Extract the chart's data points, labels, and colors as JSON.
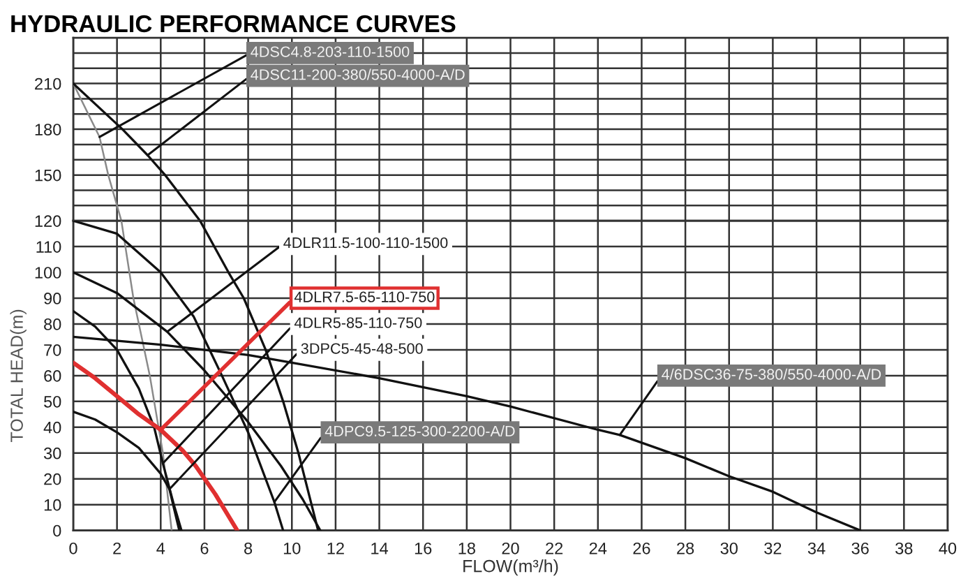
{
  "chart_data": [
    {
      "type": "line",
      "title": "HYDRAULIC PERFORMANCE CURVES",
      "tick_labels": "y",
      "series": [
        {
          "color": "#8a8a8a",
          "x": [
            0,
            1.2,
            1.6,
            2.2
          ],
          "values": [
            210,
            175,
            150,
            120
          ]
        },
        {
          "color": "#111111",
          "x": [
            0,
            2.25,
            3.4,
            4.2,
            5.8
          ],
          "values": [
            210,
            180,
            163,
            150,
            120
          ]
        }
      ],
      "annotations": [
        {
          "text": "4DSC4.8-203-110-1500",
          "x": 1.2,
          "y": 175
        },
        {
          "text": "4DSC11-200-380/550-4000-A/D",
          "x": 3.4,
          "y": 163
        }
      ],
      "xlim": [
        0,
        40
      ],
      "xticks": [
        {
          "value": 0,
          "label": null
        },
        {
          "value": 2,
          "label": null
        },
        {
          "value": 4,
          "label": null
        },
        {
          "value": 6,
          "label": null
        },
        {
          "value": 8,
          "label": null
        },
        {
          "value": 10,
          "label": null
        },
        {
          "value": 12,
          "label": null
        },
        {
          "value": 14,
          "label": null
        },
        {
          "value": 16,
          "label": null
        },
        {
          "value": 18,
          "label": null
        },
        {
          "value": 20,
          "label": null
        },
        {
          "value": 22,
          "label": null
        },
        {
          "value": 24,
          "label": null
        },
        {
          "value": 26,
          "label": null
        },
        {
          "value": 28,
          "label": null
        },
        {
          "value": 30,
          "label": null
        },
        {
          "value": 32,
          "label": null
        },
        {
          "value": 34,
          "label": null
        },
        {
          "value": 36,
          "label": null
        },
        {
          "value": 38,
          "label": null
        },
        {
          "value": 40,
          "label": null
        }
      ],
      "ylim": [
        120,
        240
      ],
      "yticks": [
        {
          "value": 130,
          "label": null
        },
        {
          "value": 140,
          "label": null
        },
        150,
        {
          "value": 160,
          "label": null
        },
        {
          "value": 170,
          "label": null
        },
        180,
        {
          "value": 190,
          "label": null
        },
        {
          "value": 200,
          "label": null
        },
        210,
        {
          "value": 220,
          "label": null
        },
        {
          "value": 230,
          "label": null
        }
      ],
      "grid": true,
      "marker": "none",
      "line_style": "solid"
    },
    {
      "type": "line",
      "xlabel": "FLOW(m³/h)",
      "ylabel": "TOTAL HEAD(m)",
      "series": [
        {
          "color": "#8a8a8a",
          "x": [
            2.2,
            2.75,
            3.5,
            4.1,
            4.5
          ],
          "values": [
            120,
            90,
            60,
            30,
            0
          ]
        },
        {
          "color": "#111111",
          "x": [
            5.8,
            7.1,
            7.8,
            8.8,
            9.6,
            10.3,
            10.9,
            11.2
          ],
          "values": [
            120,
            100,
            90,
            70,
            50,
            30,
            10,
            0
          ]
        },
        {
          "color": "#111111",
          "x": [
            0,
            2,
            4,
            5.5,
            6.8,
            8,
            9.2,
            9.6
          ],
          "values": [
            120,
            115,
            100,
            83,
            60,
            38,
            11,
            0
          ]
        },
        {
          "color": "#111111",
          "x": [
            0,
            2,
            4.3,
            6,
            8,
            9.5,
            10.5,
            11.3
          ],
          "values": [
            100,
            92,
            77,
            62,
            42,
            25,
            12,
            0
          ]
        },
        {
          "color": "#111111",
          "x": [
            0,
            1,
            2,
            3,
            3.7,
            4.1,
            4.6,
            4.95
          ],
          "values": [
            85,
            79,
            70,
            55,
            40,
            26,
            10,
            0
          ]
        },
        {
          "color": "#e03030",
          "x": [
            0,
            1,
            2,
            3,
            4,
            5,
            5.6,
            6.5,
            7,
            7.5
          ],
          "values": [
            65,
            59,
            52,
            45,
            39,
            31,
            25,
            14,
            7,
            0
          ]
        },
        {
          "color": "#111111",
          "x": [
            0,
            1,
            2,
            3,
            4,
            4.4,
            4.85
          ],
          "values": [
            46,
            43,
            38,
            32,
            22,
            16,
            0
          ]
        },
        {
          "color": "#111111",
          "x": [
            0,
            4,
            8,
            10,
            14,
            18,
            20,
            24,
            25,
            28,
            30,
            32,
            34,
            36
          ],
          "values": [
            75,
            72,
            68,
            65,
            59,
            52,
            48,
            39,
            37,
            28,
            21,
            15,
            7,
            0
          ]
        }
      ],
      "annotations": [
        {
          "text": "4DLR11.5-100-110-1500",
          "x": 4.3,
          "y": 77
        },
        {
          "text": "4DLR7.5-65-110-750",
          "x": 4.0,
          "y": 39
        },
        {
          "text": "4DLR5-85-110-750",
          "x": 4.1,
          "y": 26
        },
        {
          "text": "3DPC5-45-48-500",
          "x": 4.4,
          "y": 16
        },
        {
          "text": "4DPC9.5-125-300-2200-A/D",
          "x": 9.2,
          "y": 11
        },
        {
          "text": "4/6DSC36-75-380/550-4000-A/D",
          "x": 25,
          "y": 37
        }
      ],
      "xlim": [
        0,
        40
      ],
      "xticks": [
        0,
        2,
        4,
        6,
        8,
        10,
        12,
        14,
        16,
        18,
        20,
        22,
        24,
        26,
        28,
        30,
        32,
        34,
        36,
        38,
        40
      ],
      "ylim": [
        0,
        120
      ],
      "yticks": [
        0,
        10,
        20,
        30,
        40,
        50,
        60,
        70,
        80,
        90,
        100,
        110,
        120
      ],
      "grid": true,
      "marker": "none",
      "line_style": "solid"
    }
  ]
}
